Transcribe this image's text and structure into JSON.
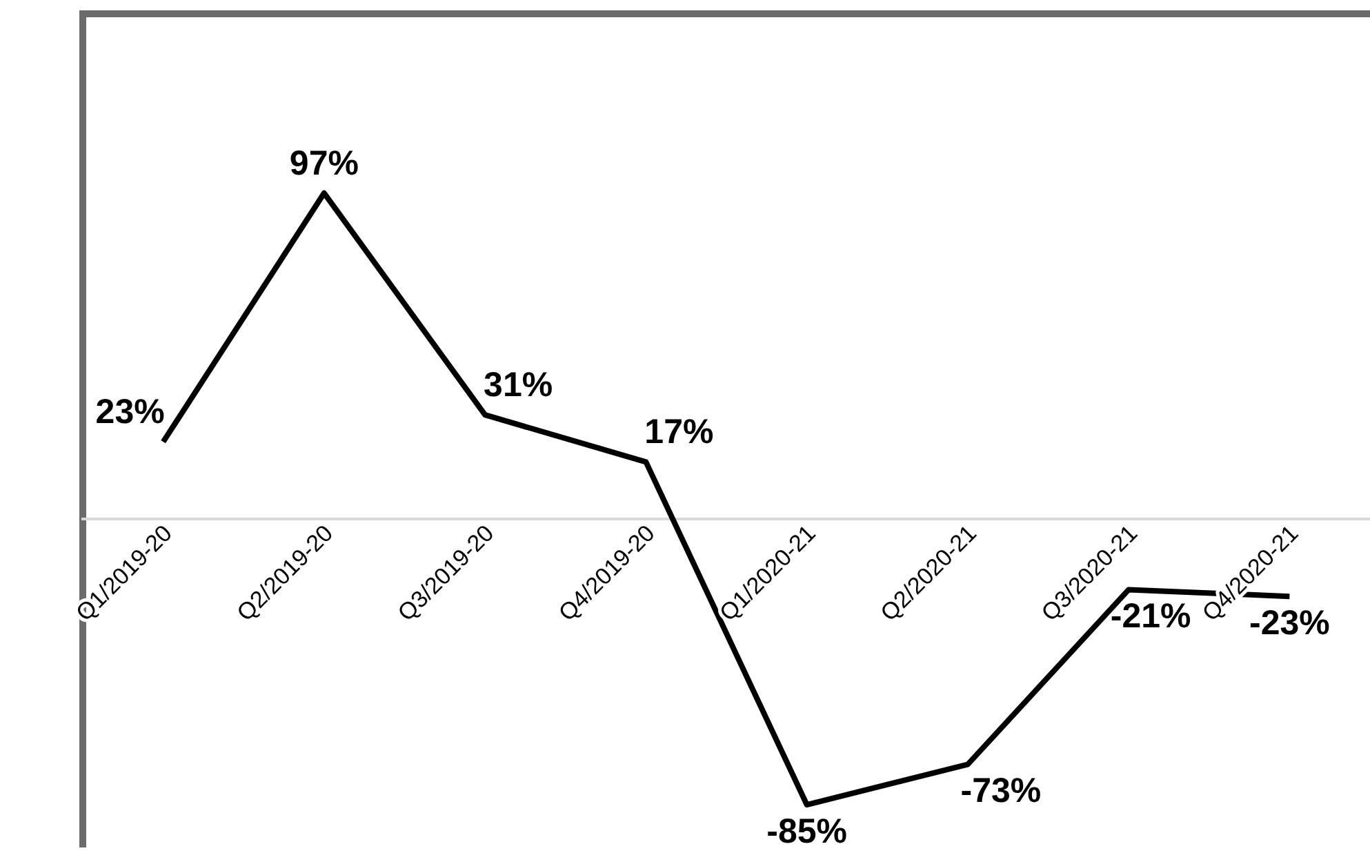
{
  "chart_data": {
    "type": "line",
    "categories": [
      "Q1/2019-20",
      "Q2/2019-20",
      "Q3/2019-20",
      "Q4/2019-20",
      "Q1/2020-21",
      "Q2/2020-21",
      "Q3/2020-21",
      "Q4/2020-21"
    ],
    "series": [
      {
        "color": "#000000",
        "values": [
          23,
          97,
          31,
          17,
          -85,
          -73,
          -21,
          -23
        ],
        "value_labels": [
          "23%",
          "97%",
          "31%",
          "17%",
          "-85%",
          "-73%",
          "-21%",
          "-23%"
        ]
      }
    ],
    "data_labels": true,
    "grid": false,
    "legend": false,
    "marker": "none",
    "line_style": "solid",
    "tick_labels": "x"
  }
}
